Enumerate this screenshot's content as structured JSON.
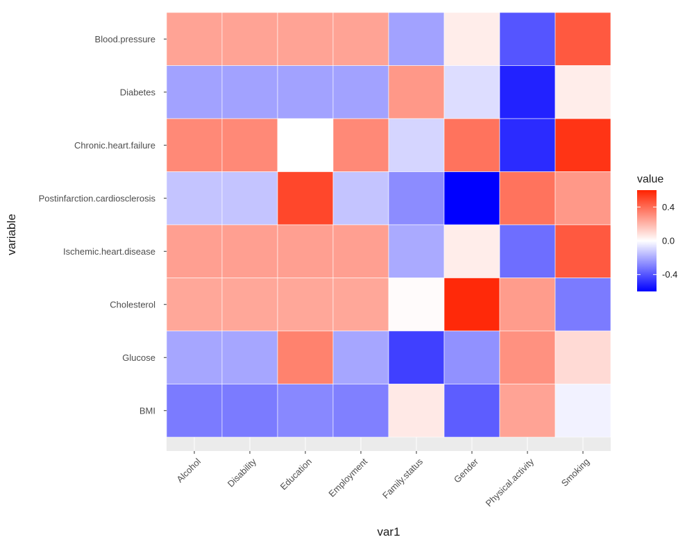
{
  "chart_data": {
    "type": "heatmap",
    "xlabel": "var1",
    "ylabel": "variable",
    "x_categories": [
      "Alcohol",
      "Disability",
      "Education",
      "Employment",
      "Family.status",
      "Gender",
      "Physical.activity",
      "Smoking"
    ],
    "y_categories": [
      "Blood.pressure",
      "Diabetes",
      "Chronic.heart.failure",
      "Postinfarction.cardiosclerosis",
      "Ischemic.heart.disease",
      "Cholesterol",
      "Glucose",
      "BMI"
    ],
    "values": [
      [
        0.25,
        0.25,
        0.25,
        0.25,
        -0.22,
        0.05,
        -0.4,
        0.45
      ],
      [
        -0.22,
        -0.22,
        -0.22,
        -0.22,
        0.28,
        -0.08,
        -0.52,
        0.05
      ],
      [
        0.32,
        0.32,
        0.0,
        0.32,
        -0.1,
        0.38,
        -0.5,
        0.55
      ],
      [
        -0.14,
        -0.14,
        0.5,
        -0.14,
        -0.27,
        -0.6,
        0.38,
        0.28
      ],
      [
        0.26,
        0.26,
        0.26,
        0.26,
        -0.2,
        0.05,
        -0.34,
        0.45
      ],
      [
        0.24,
        0.24,
        0.24,
        0.24,
        0.01,
        0.58,
        0.27,
        -0.31
      ],
      [
        -0.21,
        -0.21,
        0.34,
        -0.21,
        -0.45,
        -0.26,
        0.3,
        0.1
      ],
      [
        -0.31,
        -0.31,
        -0.28,
        -0.3,
        0.06,
        -0.38,
        0.25,
        -0.03
      ]
    ],
    "legend": {
      "title": "value",
      "ticks": [
        0.4,
        0.0,
        -0.4
      ],
      "tick_labels": [
        "0.4",
        "0.0",
        "-0.4"
      ],
      "range": [
        -0.6,
        0.6
      ],
      "colors": {
        "low": "#0000ff",
        "mid": "#ffffff",
        "high": "#ff2200"
      }
    },
    "grid": true,
    "legend_position": "right"
  },
  "colors": {
    "panel_background": "#ebebeb",
    "tile_border": "#ffffff"
  }
}
